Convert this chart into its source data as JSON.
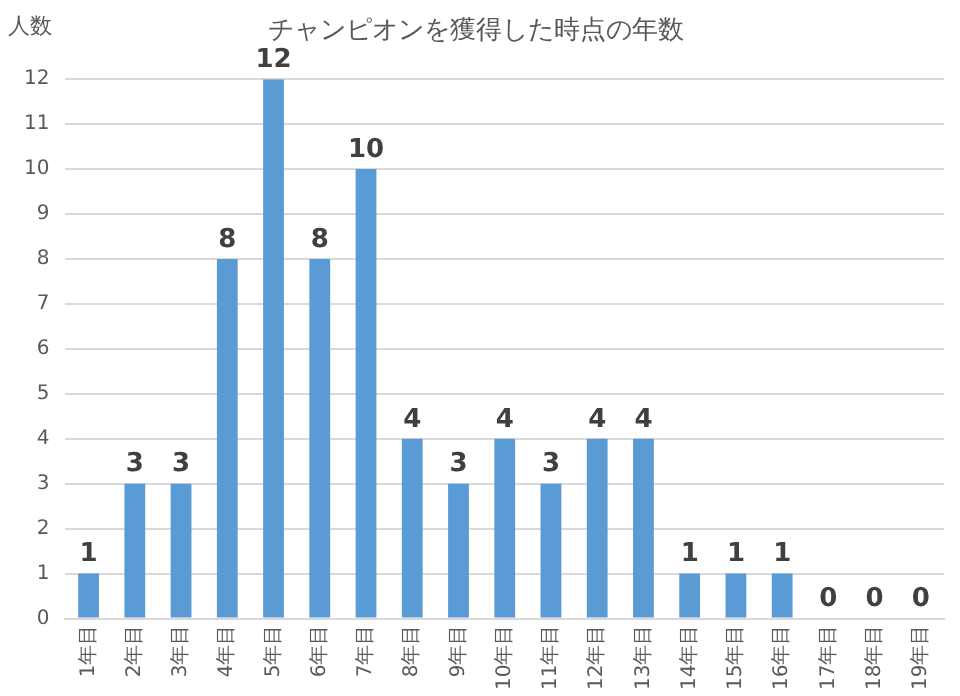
{
  "chart_data": {
    "type": "bar",
    "title": "チャンピオンを獲得した時点の年数",
    "ylabel": "人数",
    "categories": [
      "1年目",
      "2年目",
      "3年目",
      "4年目",
      "5年目",
      "6年目",
      "7年目",
      "8年目",
      "9年目",
      "10年目",
      "11年目",
      "12年目",
      "13年目",
      "14年目",
      "15年目",
      "16年目",
      "17年目",
      "18年目",
      "19年目"
    ],
    "values": [
      1,
      3,
      3,
      8,
      12,
      8,
      10,
      4,
      3,
      4,
      3,
      4,
      4,
      1,
      1,
      1,
      0,
      0,
      0
    ],
    "color": "#5b9bd5",
    "ylim": [
      0,
      12
    ],
    "yticks": [
      0,
      1,
      2,
      3,
      4,
      5,
      6,
      7,
      8,
      9,
      10,
      11,
      12
    ],
    "grid": "y",
    "data_labels": true,
    "legend": false
  }
}
